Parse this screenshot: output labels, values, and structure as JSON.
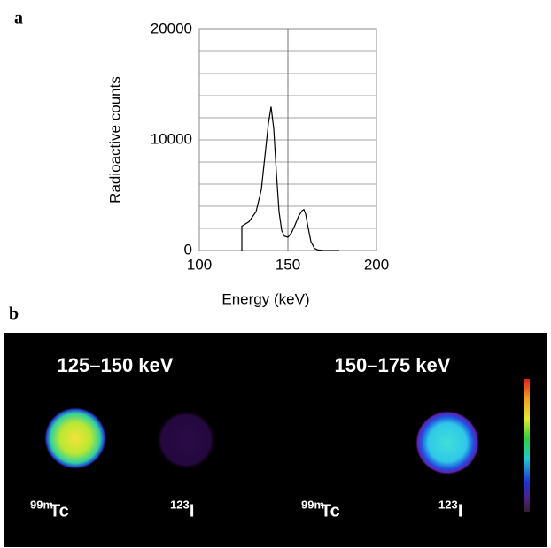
{
  "panel_labels": [
    "a",
    "b"
  ],
  "chart_data": {
    "type": "line",
    "xlabel": "Energy (keV)",
    "ylabel": "Radioactive counts",
    "xlim": [
      100,
      200
    ],
    "xticks": [
      100,
      150,
      200
    ],
    "ylim": [
      0,
      20000
    ],
    "yticks": [
      0,
      10000,
      20000
    ],
    "ygrid": [
      2000,
      4000,
      6000,
      8000,
      10000,
      12000,
      14000,
      16000,
      18000,
      20000
    ],
    "xgrid": [
      150
    ],
    "series": [
      {
        "color": "#000000",
        "x": [
          124,
          124,
          128,
          132,
          135,
          137,
          139,
          140.5,
          142,
          143.5,
          145,
          146.5,
          148,
          150,
          152,
          154,
          156,
          158,
          159,
          160,
          161.5,
          163,
          165,
          167,
          170,
          179
        ],
        "values": [
          0,
          2200,
          2600,
          3500,
          5500,
          8500,
          11500,
          13000,
          11000,
          7000,
          3500,
          1800,
          1300,
          1200,
          1600,
          2300,
          3100,
          3600,
          3700,
          3300,
          2000,
          800,
          200,
          50,
          0,
          0
        ]
      }
    ]
  },
  "image": {
    "windows": [
      "125–150 keV",
      "150–175 keV"
    ],
    "sources": [
      {
        "sup": "99m",
        "base": "Tc"
      },
      {
        "sup": "123",
        "base": "I"
      },
      {
        "sup": "99m",
        "base": "Tc"
      },
      {
        "sup": "123",
        "base": "I"
      }
    ]
  }
}
